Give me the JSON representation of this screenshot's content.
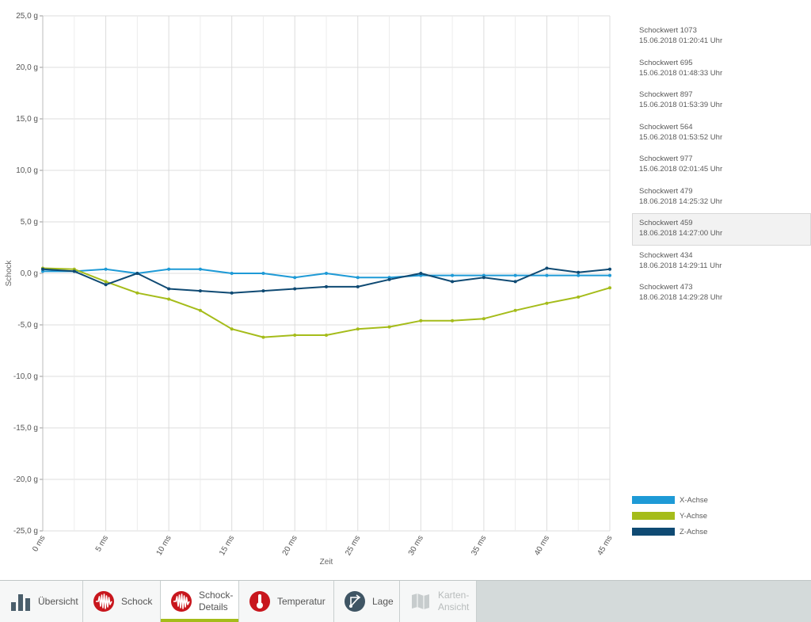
{
  "chart_data": {
    "type": "line",
    "xlabel": "Zeit",
    "ylabel": "Schock",
    "ylim": [
      -25,
      25
    ],
    "y_ticks": [
      "25,0 g",
      "20,0 g",
      "15,0 g",
      "10,0 g",
      "5,0 g",
      "0,0 g",
      "-5,0 g",
      "-10,0 g",
      "-15,0 g",
      "-20,0 g",
      "-25,0 g"
    ],
    "x_ticks": [
      "0 ms",
      "5 ms",
      "10 ms",
      "15 ms",
      "20 ms",
      "25 ms",
      "30 ms",
      "35 ms",
      "40 ms",
      "45 ms"
    ],
    "xlim": [
      0,
      45
    ],
    "x": [
      0,
      2.5,
      5,
      7.5,
      10,
      12.5,
      15,
      17.5,
      20,
      22.5,
      25,
      27.5,
      30,
      32.5,
      35,
      37.5,
      40,
      42.5,
      45
    ],
    "grid": true,
    "legend_position": "bottom-right",
    "series": [
      {
        "name": "X-Achse",
        "color": "#1e9ad6",
        "values": [
          0.2,
          0.2,
          0.4,
          0.0,
          0.4,
          0.4,
          0.0,
          0.0,
          -0.4,
          0.0,
          -0.4,
          -0.4,
          -0.2,
          -0.2,
          -0.2,
          -0.2,
          -0.2,
          -0.2,
          -0.2
        ]
      },
      {
        "name": "Y-Achse",
        "color": "#a5bc1a",
        "values": [
          0.5,
          0.4,
          -0.8,
          -1.9,
          -2.5,
          -3.6,
          -5.4,
          -6.2,
          -6.0,
          -6.0,
          -5.4,
          -5.2,
          -4.6,
          -4.6,
          -4.4,
          -3.6,
          -2.9,
          -2.3,
          -1.4
        ]
      },
      {
        "name": "Z-Achse",
        "color": "#0f4a73",
        "values": [
          0.4,
          0.2,
          -1.1,
          0.0,
          -1.5,
          -1.7,
          -1.9,
          -1.7,
          -1.5,
          -1.3,
          -1.3,
          -0.6,
          0.0,
          -0.8,
          -0.4,
          -0.8,
          0.5,
          0.1,
          0.4
        ]
      }
    ]
  },
  "shock_list": [
    {
      "title": "Schockwert 1073",
      "date": "15.06.2018 01:20:41 Uhr",
      "selected": false
    },
    {
      "title": "Schockwert 695",
      "date": "15.06.2018 01:48:33 Uhr",
      "selected": false
    },
    {
      "title": "Schockwert 897",
      "date": "15.06.2018 01:53:39 Uhr",
      "selected": false
    },
    {
      "title": "Schockwert 564",
      "date": "15.06.2018 01:53:52 Uhr",
      "selected": false
    },
    {
      "title": "Schockwert 977",
      "date": "15.06.2018 02:01:45 Uhr",
      "selected": false
    },
    {
      "title": "Schockwert 479",
      "date": "18.06.2018 14:25:32 Uhr",
      "selected": false
    },
    {
      "title": "Schockwert 459",
      "date": "18.06.2018 14:27:00 Uhr",
      "selected": true
    },
    {
      "title": "Schockwert 434",
      "date": "18.06.2018 14:29:11 Uhr",
      "selected": false
    },
    {
      "title": "Schockwert 473",
      "date": "18.06.2018 14:29:28 Uhr",
      "selected": false
    }
  ],
  "tabs": [
    {
      "label": "Übersicht",
      "icon": "bar-chart-icon",
      "active": false,
      "disabled": false
    },
    {
      "label": "Schock",
      "icon": "shock-wave-icon",
      "active": false,
      "disabled": false
    },
    {
      "label": "Schock-\nDetails",
      "icon": "shock-wave-icon",
      "active": true,
      "disabled": false
    },
    {
      "label": "Temperatur",
      "icon": "thermometer-icon",
      "active": false,
      "disabled": false
    },
    {
      "label": "Lage",
      "icon": "orientation-icon",
      "active": false,
      "disabled": false
    },
    {
      "label": "Karten-\nAnsicht",
      "icon": "map-icon",
      "active": false,
      "disabled": true
    }
  ],
  "colors": {
    "accent": "#a5bc1a",
    "icon_red": "#c8161d",
    "icon_dark": "#3f5564",
    "icon_gray": "#4a5e6b"
  }
}
